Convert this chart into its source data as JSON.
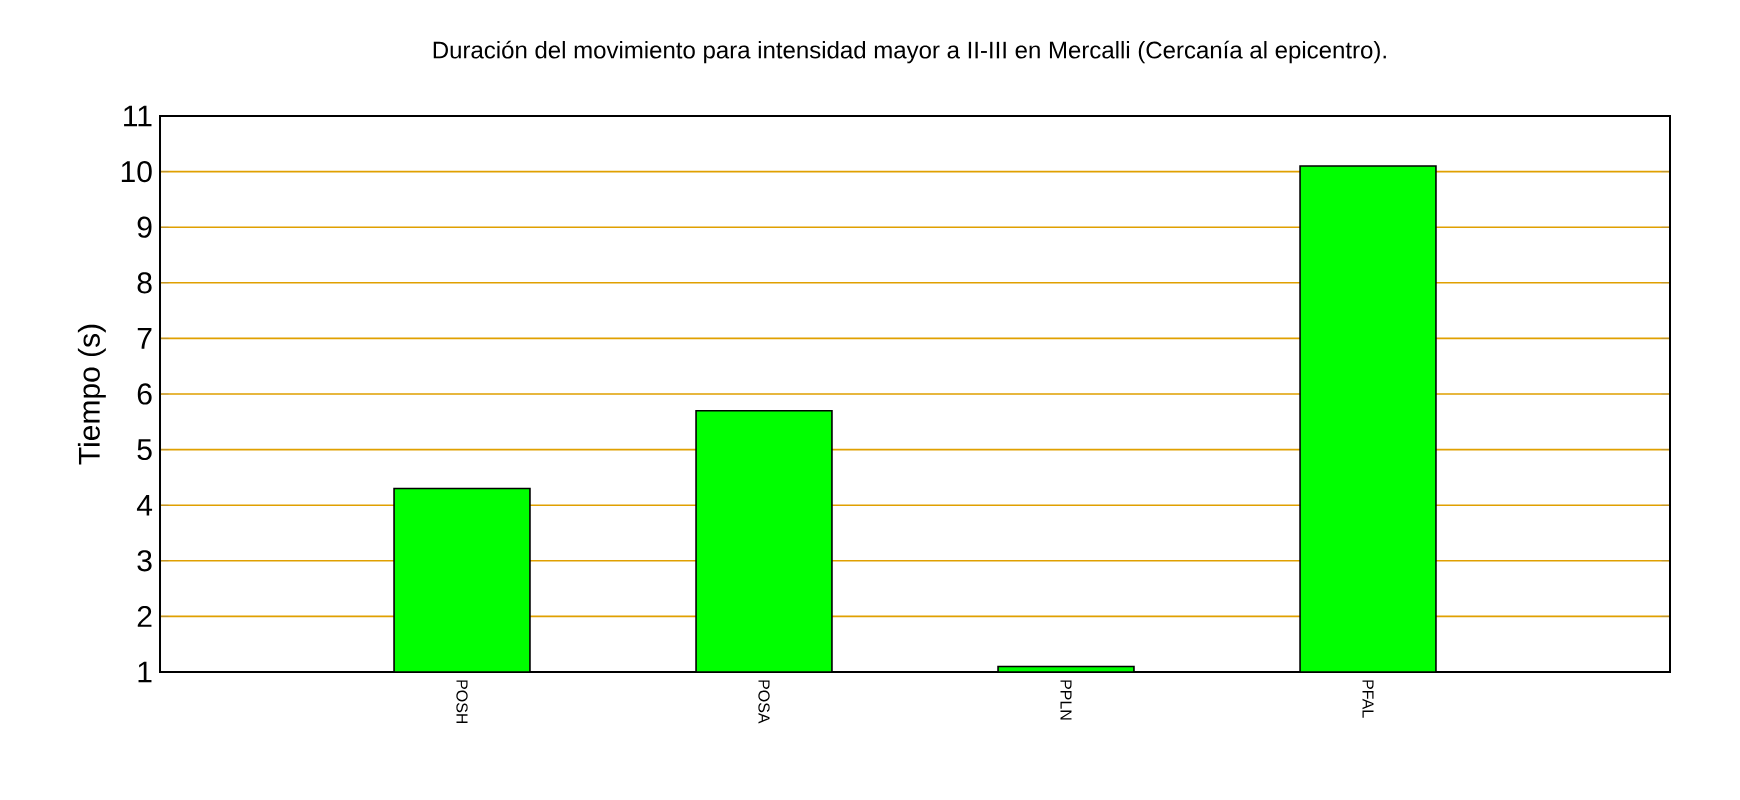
{
  "chart_data": {
    "type": "bar",
    "title": "Duración del movimiento para intensidad mayor a II-III en Mercalli (Cercanía al epicentro).",
    "ylabel": "Tiempo (s)",
    "categories": [
      "POSH",
      "POSA",
      "PPLN",
      "PFAL"
    ],
    "values": [
      4.3,
      5.7,
      1.1,
      10.1
    ],
    "color": "#00ff00",
    "ylim": [
      1,
      11
    ],
    "yticks": [
      1,
      2,
      3,
      4,
      5,
      6,
      7,
      8,
      9,
      10,
      11
    ],
    "grid": "y"
  }
}
